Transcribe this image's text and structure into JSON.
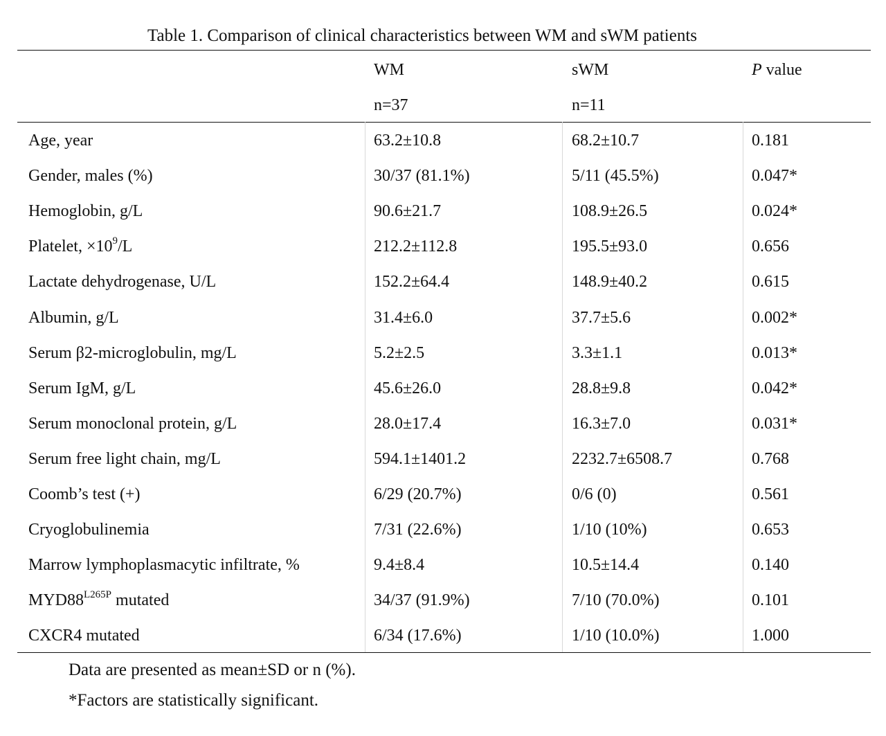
{
  "table": {
    "caption": "Table 1. Comparison of clinical characteristics between WM and sWM patients",
    "headers": {
      "wm": "WM",
      "wm_n": "n=37",
      "swm": "sWM",
      "swm_n": "n=11",
      "p_italic": "P",
      "p_rest": " value"
    },
    "rows": [
      {
        "label": "Age, year",
        "wm": "63.2±10.8",
        "swm": "68.2±10.7",
        "p": "0.181"
      },
      {
        "label": "Gender, males (%)",
        "wm": "30/37 (81.1%)",
        "swm": "5/11 (45.5%)",
        "p": "0.047*"
      },
      {
        "label": "Hemoglobin, g/L",
        "wm": "90.6±21.7",
        "swm": "108.9±26.5",
        "p": "0.024*"
      },
      {
        "label_pre": "Platelet, ×10",
        "label_sup": "9",
        "label_post": "/L",
        "wm": "212.2±112.8",
        "swm": "195.5±93.0",
        "p": "0.656"
      },
      {
        "label": "Lactate dehydrogenase, U/L",
        "wm": "152.2±64.4",
        "swm": "148.9±40.2",
        "p": "0.615"
      },
      {
        "label": "Albumin, g/L",
        "wm": "31.4±6.0",
        "swm": "37.7±5.6",
        "p": "0.002*"
      },
      {
        "label": "Serum β2-microglobulin, mg/L",
        "wm": "5.2±2.5",
        "swm": "3.3±1.1",
        "p": "0.013*"
      },
      {
        "label": "Serum IgM, g/L",
        "wm": "45.6±26.0",
        "swm": "28.8±9.8",
        "p": "0.042*"
      },
      {
        "label": "Serum monoclonal protein, g/L",
        "wm": "28.0±17.4",
        "swm": "16.3±7.0",
        "p": "0.031*"
      },
      {
        "label": "Serum free light chain, mg/L",
        "wm": "594.1±1401.2",
        "swm": "2232.7±6508.7",
        "p": "0.768"
      },
      {
        "label": "Coomb’s test (+)",
        "wm": "6/29 (20.7%)",
        "swm": "0/6 (0)",
        "p": "0.561"
      },
      {
        "label": "Cryoglobulinemia",
        "wm": "7/31 (22.6%)",
        "swm": "1/10 (10%)",
        "p": "0.653"
      },
      {
        "label": "Marrow lymphoplasmacytic infiltrate, %",
        "wm": "9.4±8.4",
        "swm": "10.5±14.4",
        "p": "0.140"
      },
      {
        "label_pre": "MYD88",
        "label_sup": "L265P",
        "label_post": " mutated",
        "wm": "34/37 (91.9%)",
        "swm": "7/10 (70.0%)",
        "p": "0.101"
      },
      {
        "label": "CXCR4 mutated",
        "wm": "6/34 (17.6%)",
        "swm": "1/10 (10.0%)",
        "p": "1.000"
      }
    ],
    "notes": [
      "Data are presented as mean±SD or n (%).",
      "*Factors are statistically significant."
    ]
  }
}
